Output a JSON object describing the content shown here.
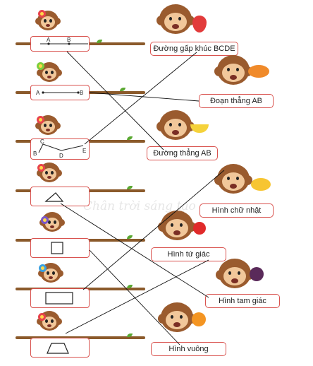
{
  "watermark": "Chân trời sáng tạo",
  "left_items": [
    {
      "kind": "ray",
      "point_a": "A",
      "point_b": "B"
    },
    {
      "kind": "segment",
      "point_a": "A",
      "point_b": "B"
    },
    {
      "kind": "polyline",
      "points": [
        "B",
        "C",
        "D",
        "E"
      ]
    },
    {
      "kind": "triangle"
    },
    {
      "kind": "square"
    },
    {
      "kind": "rectangle"
    },
    {
      "kind": "trapezoid"
    }
  ],
  "right_labels": [
    "Đường gấp khúc BCDE",
    "Đoạn thẳng AB",
    "Đường thẳng AB",
    "Hình chữ nhật",
    "Hình tứ giác",
    "Hình tam giác",
    "Hình vuông"
  ],
  "fruits": [
    "strawberry",
    "papaya",
    "banana",
    "mango",
    "apple",
    "mangosteen",
    "orange"
  ],
  "flower_colors": [
    "#e8434b",
    "#7ccf3d",
    "#e8434b",
    "#e8434b",
    "#7a56c8",
    "#3aa0e0",
    "#e8434b"
  ],
  "connections": [
    [
      0,
      2
    ],
    [
      1,
      1
    ],
    [
      2,
      0
    ],
    [
      3,
      5
    ],
    [
      4,
      6
    ],
    [
      5,
      3
    ],
    [
      6,
      4
    ]
  ]
}
